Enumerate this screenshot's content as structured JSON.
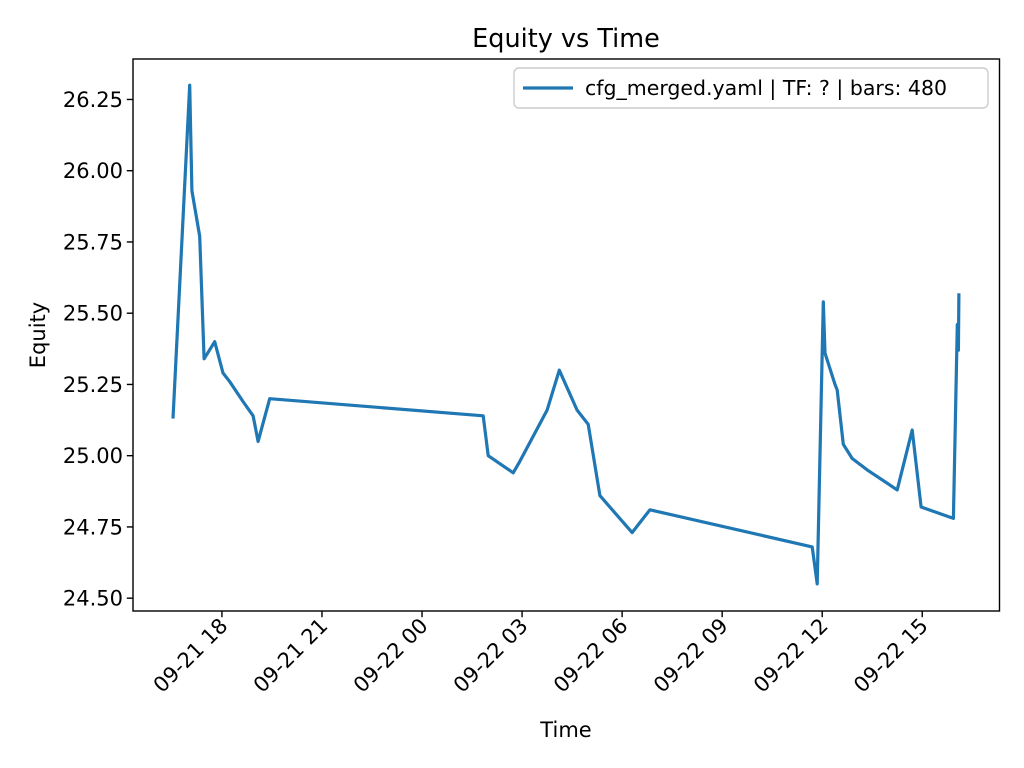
{
  "colors": {
    "line_blue": "#1f77b4",
    "axis_black": "#000000",
    "legend_border": "#cccccc",
    "background": "#ffffff"
  },
  "chart_data": {
    "type": "line",
    "title": "Equity vs Time",
    "xlabel": "Time",
    "ylabel": "Equity",
    "grid": false,
    "legend_position": "upper right",
    "legend": [
      {
        "label": "cfg_merged.yaml | TF: ? | bars: 480",
        "color": "#1f77b4"
      }
    ],
    "y_ticks": [
      24.5,
      24.75,
      25.0,
      25.25,
      25.5,
      25.75,
      26.0,
      26.25
    ],
    "x_ticks": [
      {
        "time": "09-21 18:00",
        "label": "09-21 18"
      },
      {
        "time": "09-21 21:00",
        "label": "09-21 21"
      },
      {
        "time": "09-22 00:00",
        "label": "09-22 00"
      },
      {
        "time": "09-22 03:00",
        "label": "09-22 03"
      },
      {
        "time": "09-22 06:00",
        "label": "09-22 06"
      },
      {
        "time": "09-22 09:00",
        "label": "09-22 09"
      },
      {
        "time": "09-22 12:00",
        "label": "09-22 12"
      },
      {
        "time": "09-22 15:00",
        "label": "09-22 15"
      }
    ],
    "xlim": [
      "09-21 15:20",
      "09-22 17:19"
    ],
    "ylim": [
      24.455,
      26.392
    ],
    "series": [
      {
        "name": "cfg_merged.yaml | TF: ? | bars: 480",
        "color": "#1f77b4",
        "points": [
          [
            "09-21 16:32",
            25.13
          ],
          [
            "09-21 17:02",
            26.3
          ],
          [
            "09-21 17:06",
            25.93
          ],
          [
            "09-21 17:20",
            25.77
          ],
          [
            "09-21 17:28",
            25.34
          ],
          [
            "09-21 17:47",
            25.4
          ],
          [
            "09-21 18:02",
            25.29
          ],
          [
            "09-21 18:14",
            25.26
          ],
          [
            "09-21 18:38",
            25.19
          ],
          [
            "09-21 18:56",
            25.14
          ],
          [
            "09-21 19:05",
            25.05
          ],
          [
            "09-21 19:26",
            25.2
          ],
          [
            "09-22 01:50",
            25.14
          ],
          [
            "09-22 01:59",
            25.0
          ],
          [
            "09-22 02:44",
            24.94
          ],
          [
            "09-22 02:56",
            24.98
          ],
          [
            "09-22 03:45",
            25.16
          ],
          [
            "09-22 04:07",
            25.3
          ],
          [
            "09-22 04:39",
            25.16
          ],
          [
            "09-22 04:59",
            25.11
          ],
          [
            "09-22 05:20",
            24.86
          ],
          [
            "09-22 06:18",
            24.73
          ],
          [
            "09-22 06:50",
            24.81
          ],
          [
            "09-22 11:42",
            24.68
          ],
          [
            "09-22 11:51",
            24.55
          ],
          [
            "09-22 12:02",
            25.54
          ],
          [
            "09-22 12:05",
            25.36
          ],
          [
            "09-22 12:23",
            25.25
          ],
          [
            "09-22 12:27",
            25.23
          ],
          [
            "09-22 12:38",
            25.04
          ],
          [
            "09-22 12:54",
            24.99
          ],
          [
            "09-22 13:21",
            24.95
          ],
          [
            "09-22 14:15",
            24.88
          ],
          [
            "09-22 14:42",
            25.09
          ],
          [
            "09-22 14:58",
            24.82
          ],
          [
            "09-22 15:56",
            24.78
          ],
          [
            "09-22 16:03",
            25.46
          ],
          [
            "09-22 16:05",
            25.37
          ],
          [
            "09-22 16:06",
            25.57
          ]
        ]
      }
    ]
  }
}
